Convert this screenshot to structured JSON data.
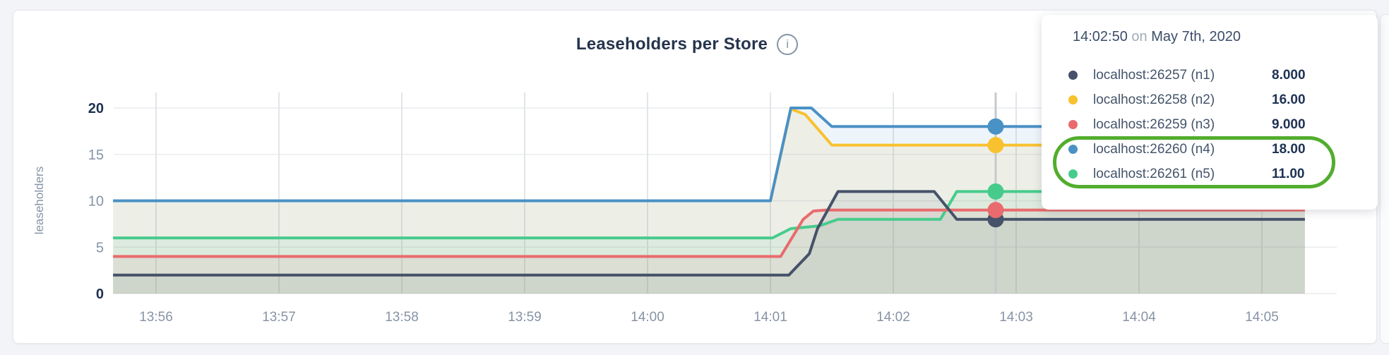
{
  "page": {
    "background": "#f3f4f7"
  },
  "header": {
    "title": "Leaseholders per Store",
    "info_icon": "i"
  },
  "chart_data": {
    "type": "area",
    "title": "Leaseholders per Store",
    "xlabel": "",
    "ylabel": "leaseholders",
    "ylim": [
      0,
      20
    ],
    "y_ticks": [
      0,
      5,
      10,
      15,
      20
    ],
    "y_ticks_bold": [
      0,
      20
    ],
    "x_ticks": [
      "13:56",
      "13:57",
      "13:58",
      "13:59",
      "14:00",
      "14:01",
      "14:02",
      "14:03",
      "14:04",
      "14:05"
    ],
    "x_range": [
      "13:55:39",
      "14:05:21"
    ],
    "grid": true,
    "fill_opacity": 0.095,
    "legend_position": "tooltip",
    "series": [
      {
        "name": "localhost:26257 (n1)",
        "node": "n1",
        "color": "#455269",
        "points": [
          [
            "13:55:39",
            2
          ],
          [
            "14:01:09",
            2
          ],
          [
            "14:01:19",
            4.3
          ],
          [
            "14:01:23",
            7
          ],
          [
            "14:01:33",
            11
          ],
          [
            "14:02:20",
            11
          ],
          [
            "14:02:31",
            8
          ],
          [
            "14:05:21",
            8
          ]
        ]
      },
      {
        "name": "localhost:26258 (n2)",
        "node": "n2",
        "color": "#f8c12e",
        "points": [
          [
            "13:55:39",
            10
          ],
          [
            "14:01:00",
            10
          ],
          [
            "14:01:10",
            19.9
          ],
          [
            "14:01:17",
            19.3
          ],
          [
            "14:01:30",
            16
          ],
          [
            "14:05:21",
            16
          ]
        ]
      },
      {
        "name": "localhost:26259 (n3)",
        "node": "n3",
        "color": "#e96b6d",
        "points": [
          [
            "13:55:39",
            4
          ],
          [
            "14:01:05",
            4
          ],
          [
            "14:01:16",
            8
          ],
          [
            "14:01:21",
            8.9
          ],
          [
            "14:01:27",
            9
          ],
          [
            "14:05:21",
            9
          ]
        ]
      },
      {
        "name": "localhost:26260 (n4)",
        "node": "n4",
        "color": "#4a91c6",
        "points": [
          [
            "13:55:39",
            10
          ],
          [
            "14:01:00",
            10
          ],
          [
            "14:01:10",
            20
          ],
          [
            "14:01:20",
            20
          ],
          [
            "14:01:30",
            18
          ],
          [
            "14:05:21",
            18
          ]
        ]
      },
      {
        "name": "localhost:26261 (n5)",
        "node": "n5",
        "color": "#47cb8c",
        "points": [
          [
            "13:55:39",
            6
          ],
          [
            "14:01:01",
            6
          ],
          [
            "14:01:10",
            7
          ],
          [
            "14:01:24",
            7.3
          ],
          [
            "14:01:33",
            8
          ],
          [
            "14:02:23",
            8
          ],
          [
            "14:02:31",
            11
          ],
          [
            "14:05:21",
            11
          ]
        ]
      }
    ],
    "hover": {
      "time": "14:02:50"
    }
  },
  "tooltip": {
    "time": "14:02:50",
    "preposition": "on",
    "date": "May 7th, 2020",
    "rows": [
      {
        "label": "localhost:26257 (n1)",
        "value": "8.000",
        "color": "#455269"
      },
      {
        "label": "localhost:26258 (n2)",
        "value": "16.00",
        "color": "#f8c12e"
      },
      {
        "label": "localhost:26259 (n3)",
        "value": "9.000",
        "color": "#e96b6d"
      },
      {
        "label": "localhost:26260 (n4)",
        "value": "18.00",
        "color": "#4a91c6"
      },
      {
        "label": "localhost:26261 (n5)",
        "value": "11.00",
        "color": "#47cb8c"
      }
    ],
    "highlight": {
      "shape": "oval",
      "color": "#52ad2e",
      "rows": [
        "localhost:26260 (n4)",
        "localhost:26261 (n5)"
      ]
    }
  }
}
